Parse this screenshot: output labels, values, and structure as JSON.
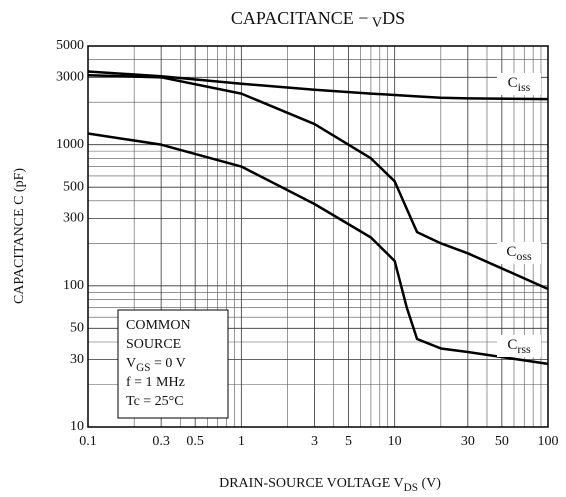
{
  "chart_data": {
    "type": "line",
    "title": "CAPACITANCE − VDS",
    "x_label": "DRAIN-SOURCE VOLTAGE  VDS  (V)",
    "y_label": "CAPACITANCE  C  (pF)",
    "x": [
      0.1,
      0.3,
      1,
      3,
      7,
      10,
      12,
      14,
      20,
      30,
      100
    ],
    "series": [
      {
        "name": "Ciss",
        "color": "#000000",
        "values": [
          3300,
          3050,
          2700,
          2450,
          2300,
          2250,
          2220,
          2200,
          2150,
          2130,
          2100
        ]
      },
      {
        "name": "Coss",
        "color": "#000000",
        "values": [
          3100,
          3000,
          2300,
          1400,
          800,
          550,
          350,
          240,
          200,
          170,
          95
        ]
      },
      {
        "name": "Crss",
        "color": "#000000",
        "values": [
          1200,
          1000,
          700,
          380,
          220,
          150,
          70,
          42,
          36,
          34,
          28
        ]
      }
    ],
    "annotation": [
      "COMMON",
      "SOURCE",
      "VGS = 0 V",
      "f = 1 MHz",
      "Tc = 25°C"
    ],
    "xlog": true,
    "ylog": true,
    "grid": true,
    "xlim": [
      0.1,
      100
    ],
    "ylim": [
      10,
      5000
    ],
    "xticks": [
      0.1,
      0.3,
      0.5,
      1,
      3,
      5,
      10,
      30,
      50,
      100
    ],
    "xminor": [
      0.2,
      0.4,
      0.6,
      0.7,
      0.8,
      0.9,
      2,
      4,
      6,
      7,
      8,
      9,
      20,
      40,
      60,
      70,
      80,
      90
    ],
    "yticks": [
      10,
      30,
      50,
      100,
      300,
      500,
      1000,
      3000,
      5000
    ],
    "yminor": [
      20,
      40,
      60,
      70,
      80,
      90,
      200,
      400,
      600,
      700,
      800,
      900,
      2000,
      4000
    ]
  }
}
